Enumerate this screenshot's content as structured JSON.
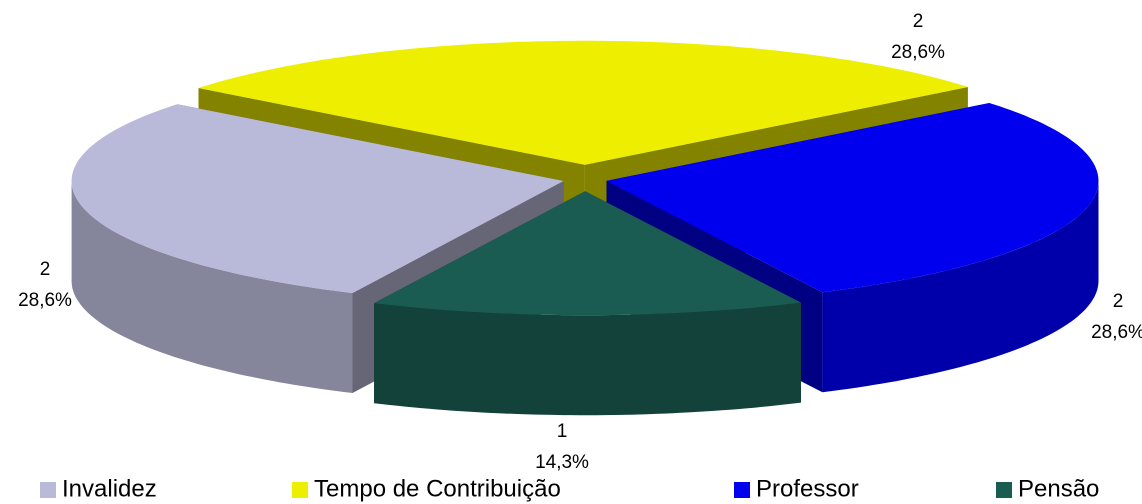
{
  "chart_data": {
    "type": "pie3d",
    "categories": [
      "Invalidez",
      "Tempo de Contribuição",
      "Professor",
      "Pensão"
    ],
    "values": [
      2,
      2,
      2,
      1
    ],
    "percentages": [
      28.6,
      28.6,
      28.6,
      14.3
    ],
    "percentage_labels": [
      "28,6%",
      "28,6%",
      "28,6%",
      "14,3%"
    ],
    "colors": [
      "#b9b9d9",
      "#eeee00",
      "#0000ee",
      "#1a5c52"
    ],
    "legend": "bottom"
  }
}
